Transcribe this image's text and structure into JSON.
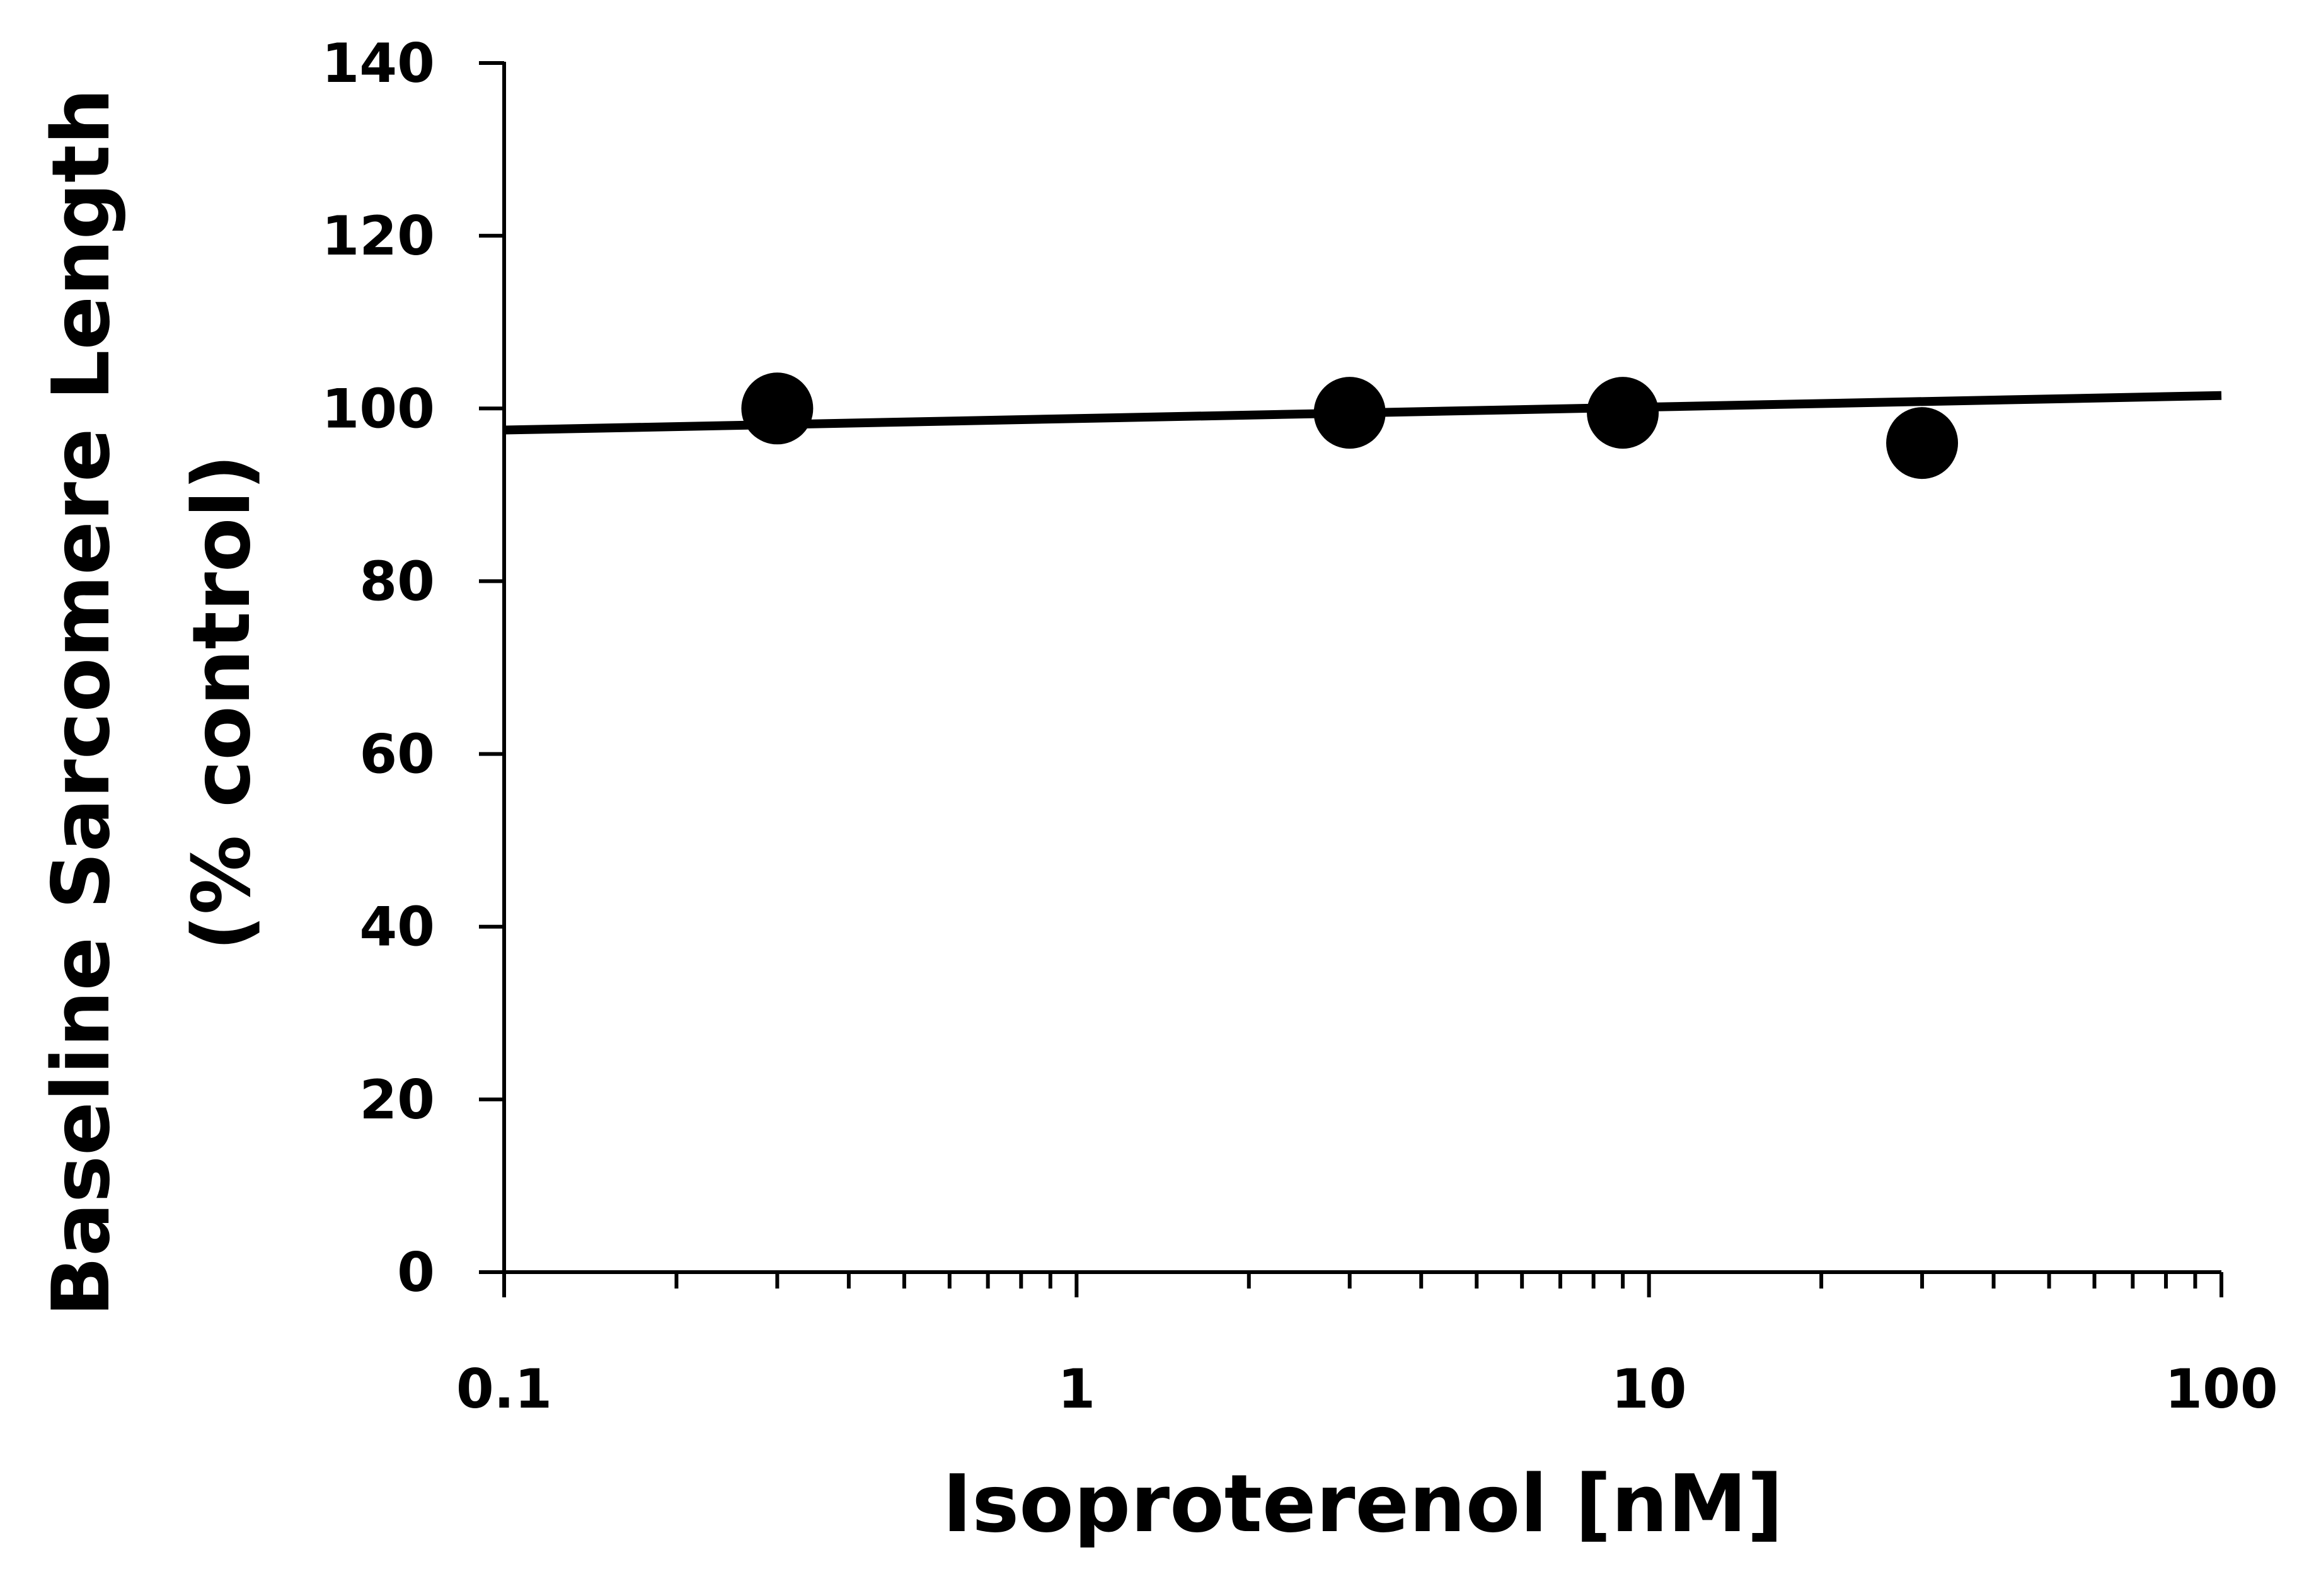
{
  "chart_data": {
    "type": "scatter",
    "xscale": "log",
    "xlabel": "Isoproterenol [nM]",
    "ylabel_lines": [
      "Baseline Sarcomere Length",
      "(% control)"
    ],
    "xlim": [
      0.1,
      100
    ],
    "ylim": [
      0,
      140
    ],
    "x_ticks": [
      0.1,
      1,
      10,
      100
    ],
    "x_tick_labels": [
      "0.1",
      "1",
      "10",
      "100"
    ],
    "y_ticks": [
      0,
      20,
      40,
      60,
      80,
      100,
      120,
      140
    ],
    "y_tick_labels": [
      "0",
      "20",
      "40",
      "60",
      "80",
      "100",
      "120",
      "140"
    ],
    "grid": false,
    "series": [
      {
        "points": [
          {
            "x": 0.3,
            "y": 100
          },
          {
            "x": 3,
            "y": 99.5
          },
          {
            "x": 9,
            "y": 99.5
          },
          {
            "x": 30,
            "y": 96
          }
        ]
      }
    ],
    "fit_line": {
      "x": [
        0.1,
        100
      ],
      "y": [
        97.5,
        101.5
      ]
    },
    "colors": {
      "points": "#000000",
      "line": "#000000",
      "axes": "#000000"
    }
  }
}
